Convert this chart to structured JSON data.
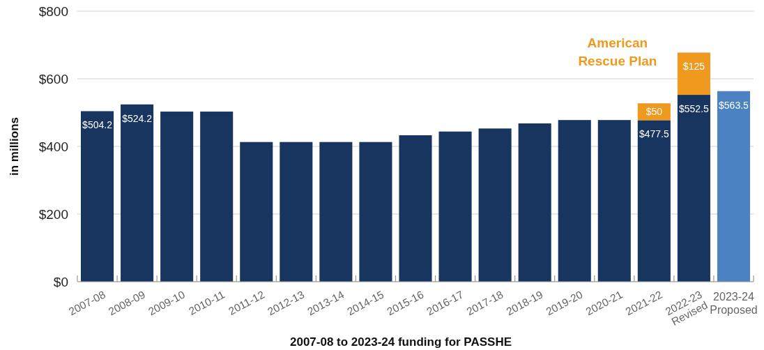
{
  "chart_data": {
    "type": "bar",
    "stacked": true,
    "xlabel": "2007-08 to 2023-24 funding for PASSHE",
    "ylabel": "in millions",
    "categories": [
      "2007-08",
      "2008-09",
      "2009-10",
      "2010-11",
      "2011-12",
      "2012-13",
      "2013-14",
      "2014-15",
      "2015-16",
      "2016-17",
      "2017-18",
      "2018-19",
      "2019-20",
      "2020-21",
      "2021-22",
      "2022-23\nRevised",
      "2023-24\nProposed"
    ],
    "series": [
      {
        "colors": [
          "#18355f",
          "#18355f",
          "#18355f",
          "#18355f",
          "#18355f",
          "#18355f",
          "#18355f",
          "#18355f",
          "#18355f",
          "#18355f",
          "#18355f",
          "#18355f",
          "#18355f",
          "#18355f",
          "#18355f",
          "#18355f",
          "#4a82c2"
        ],
        "values": [
          504.2,
          524.2,
          503,
          503,
          413,
          413,
          413,
          413,
          433,
          444,
          453,
          468,
          478,
          478,
          477.5,
          552.5,
          563.5
        ],
        "value_labels": [
          "$504.2",
          "$524.2",
          null,
          null,
          null,
          null,
          null,
          null,
          null,
          null,
          null,
          null,
          null,
          null,
          "$477.5",
          "$552.5",
          "$563.5"
        ]
      },
      {
        "name": "American Rescue Plan",
        "color": "#f0991f",
        "values": [
          null,
          null,
          null,
          null,
          null,
          null,
          null,
          null,
          null,
          null,
          null,
          null,
          null,
          null,
          50,
          125,
          null
        ],
        "value_labels": [
          null,
          null,
          null,
          null,
          null,
          null,
          null,
          null,
          null,
          null,
          null,
          null,
          null,
          null,
          "$50",
          "$125",
          null
        ]
      }
    ],
    "ylim": [
      0,
      800
    ],
    "yticks": [
      {
        "value": 0,
        "label": "$0"
      },
      {
        "value": 200,
        "label": "$200"
      },
      {
        "value": 400,
        "label": "$400"
      },
      {
        "value": 600,
        "label": "$600"
      },
      {
        "value": 800,
        "label": "$800"
      }
    ],
    "grid": "y"
  }
}
